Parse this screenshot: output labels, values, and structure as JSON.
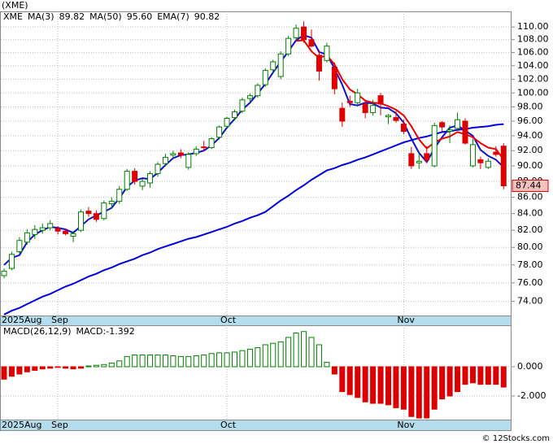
{
  "chart_data": {
    "type": "candlestick",
    "title": "(XME)",
    "ticker": "XME",
    "ticker_color": "#008000",
    "up_color": "#008000",
    "down_color": "#dd0000",
    "log_scale": true,
    "grid": true,
    "ylim": [
      72.5,
      112.5
    ],
    "yticks": [
      {
        "value": 74,
        "label": "74.00"
      },
      {
        "value": 76,
        "label": "76.00"
      },
      {
        "value": 78,
        "label": "78.00"
      },
      {
        "value": 80,
        "label": "80.00"
      },
      {
        "value": 82,
        "label": "82.00"
      },
      {
        "value": 84,
        "label": "84.00"
      },
      {
        "value": 86,
        "label": "86.00"
      },
      {
        "value": 88,
        "label": "88.00"
      },
      {
        "value": 90,
        "label": "90.00"
      },
      {
        "value": 92,
        "label": "92.00"
      },
      {
        "value": 94,
        "label": "94.00"
      },
      {
        "value": 96,
        "label": "96.00"
      },
      {
        "value": 98,
        "label": "98.00"
      },
      {
        "value": 100,
        "label": "100.00"
      },
      {
        "value": 102,
        "label": "102.00"
      },
      {
        "value": 104,
        "label": "104.00"
      },
      {
        "value": 106,
        "label": "106.00"
      },
      {
        "value": 108,
        "label": "108.00"
      },
      {
        "value": 110,
        "label": "110.00"
      }
    ],
    "xticks": [
      {
        "value": 0,
        "label": "2025Aug"
      },
      {
        "value": 7,
        "label": "Sep"
      },
      {
        "value": 29,
        "label": "Oct"
      },
      {
        "value": 52,
        "label": "Nov"
      }
    ],
    "open": [
      76.8,
      77.6,
      79.5,
      80.6,
      81.5,
      82.0,
      82.3,
      82.2,
      81.9,
      81.3,
      82.0,
      84.3,
      84.0,
      83.4,
      85.2,
      85.5,
      87.0,
      89.3,
      87.4,
      87.8,
      89.0,
      90.3,
      91.4,
      91.7,
      89.8,
      91.6,
      92.5,
      92.4,
      93.8,
      95.3,
      96.5,
      97.4,
      99.2,
      99.6,
      101.2,
      103.4,
      102.4,
      105.8,
      108.3,
      110.0,
      108.0,
      105.6,
      104.8,
      103.8,
      97.8,
      98.8,
      98.6,
      98.4,
      97.2,
      99.6,
      96.6,
      96.5,
      95.6,
      91.6,
      90.4,
      91.6,
      90.0,
      95.8,
      94.6,
      95.0,
      96.0,
      90.0,
      90.8,
      89.8,
      91.8,
      92.6
    ],
    "high": [
      77.6,
      79.5,
      81.2,
      82.1,
      82.6,
      82.8,
      83.2,
      82.5,
      82.2,
      81.9,
      84.5,
      84.8,
      84.4,
      85.6,
      86.0,
      87.4,
      89.6,
      89.7,
      88.3,
      89.3,
      90.5,
      91.6,
      92.0,
      92.2,
      91.8,
      92.6,
      93.3,
      93.8,
      95.4,
      96.6,
      97.6,
      99.3,
      99.9,
      101.4,
      103.6,
      104.9,
      106.2,
      108.6,
      110.4,
      110.9,
      109.6,
      106.4,
      107.5,
      104.5,
      98.6,
      99.6,
      100.6,
      98.8,
      99.0,
      100.0,
      97.0,
      97.4,
      96.2,
      92.5,
      91.8,
      92.6,
      95.8,
      96.0,
      95.4,
      97.2,
      96.4,
      93.6,
      91.2,
      91.0,
      92.6,
      93.0
    ],
    "low": [
      76.5,
      77.4,
      79.3,
      80.3,
      81.0,
      81.6,
      82.0,
      81.5,
      81.4,
      80.6,
      81.8,
      83.6,
      83.0,
      83.2,
      84.6,
      85.2,
      86.8,
      87.6,
      86.9,
      87.2,
      88.6,
      89.9,
      90.9,
      91.0,
      89.5,
      91.3,
      92.0,
      92.2,
      93.5,
      95.0,
      96.1,
      97.1,
      98.6,
      99.3,
      100.9,
      103.0,
      102.0,
      105.5,
      107.9,
      107.5,
      106.8,
      101.8,
      104.5,
      99.8,
      95.2,
      98.0,
      98.2,
      96.4,
      96.8,
      96.8,
      95.6,
      95.8,
      94.2,
      89.6,
      89.6,
      90.4,
      89.8,
      94.6,
      93.0,
      94.8,
      92.8,
      89.8,
      89.6,
      89.6,
      91.2,
      87.0
    ],
    "close": [
      77.3,
      79.2,
      80.8,
      81.7,
      82.1,
      82.3,
      82.8,
      81.9,
      81.6,
      81.6,
      84.2,
      84.0,
      83.3,
      85.3,
      85.5,
      87.0,
      89.3,
      88.0,
      88.0,
      89.0,
      90.2,
      91.1,
      91.6,
      91.4,
      91.5,
      92.2,
      92.4,
      93.6,
      95.2,
      96.4,
      97.3,
      99.0,
      99.6,
      101.1,
      103.3,
      104.6,
      105.8,
      108.2,
      109.8,
      108.0,
      107.0,
      103.2,
      107.0,
      100.6,
      96.0,
      98.6,
      100.0,
      97.2,
      98.2,
      98.4,
      96.8,
      96.1,
      94.6,
      90.0,
      90.6,
      90.8,
      95.4,
      95.2,
      94.8,
      96.2,
      93.0,
      92.8,
      90.4,
      90.6,
      91.5,
      87.44
    ],
    "last_close_label": "87.44",
    "series": [
      {
        "name": "MA(3)",
        "color": "#1010cc",
        "last_label": "89.82",
        "values": [
          78.0,
          78.8,
          79.1,
          80.6,
          81.5,
          82.0,
          82.4,
          82.3,
          82.1,
          81.7,
          82.5,
          83.3,
          83.8,
          84.2,
          84.7,
          85.9,
          87.3,
          88.1,
          88.4,
          88.3,
          89.1,
          90.1,
          91.0,
          91.4,
          91.5,
          91.7,
          92.0,
          92.7,
          93.7,
          95.1,
          96.3,
          97.6,
          98.6,
          99.9,
          101.3,
          103.0,
          104.6,
          106.2,
          107.9,
          108.7,
          108.3,
          106.1,
          105.7,
          103.6,
          101.2,
          98.4,
          98.2,
          98.6,
          98.5,
          97.9,
          97.8,
          97.1,
          95.8,
          93.6,
          91.7,
          90.5,
          92.3,
          93.8,
          95.1,
          95.4,
          94.7,
          94.0,
          92.1,
          91.3,
          90.8,
          89.82
        ]
      },
      {
        "name": "MA(50)",
        "color": "#0000dd",
        "last_label": "95.60",
        "values": [
          72.6,
          73.0,
          73.3,
          73.7,
          74.1,
          74.5,
          74.8,
          75.2,
          75.6,
          75.9,
          76.3,
          76.7,
          77.0,
          77.4,
          77.7,
          78.1,
          78.4,
          78.7,
          79.1,
          79.4,
          79.8,
          80.1,
          80.4,
          80.7,
          81.0,
          81.2,
          81.5,
          81.8,
          82.1,
          82.4,
          82.8,
          83.1,
          83.5,
          83.8,
          84.2,
          84.9,
          85.6,
          86.2,
          86.9,
          87.5,
          88.2,
          88.8,
          89.4,
          89.7,
          90.1,
          90.4,
          90.8,
          91.1,
          91.5,
          91.9,
          92.3,
          92.7,
          93.1,
          93.4,
          93.7,
          93.9,
          94.2,
          94.5,
          94.6,
          94.8,
          94.9,
          95.1,
          95.2,
          95.3,
          95.5,
          95.6
        ]
      },
      {
        "name": "EMA(7)",
        "color": "#ee0000",
        "last_label": "90.82",
        "values": [
          null,
          null,
          null,
          null,
          null,
          null,
          null,
          null,
          null,
          null,
          null,
          null,
          null,
          null,
          null,
          null,
          null,
          null,
          null,
          null,
          null,
          null,
          null,
          null,
          null,
          null,
          null,
          null,
          null,
          null,
          null,
          null,
          null,
          null,
          null,
          null,
          null,
          null,
          107.8,
          107.9,
          106.2,
          105.2,
          105.6,
          104.2,
          102.0,
          100.5,
          99.8,
          98.9,
          98.6,
          98.5,
          98.1,
          97.6,
          96.8,
          95.3,
          93.5,
          92.3,
          93.1,
          93.6,
          93.9,
          94.5,
          94.2,
          93.8,
          93.0,
          92.4,
          92.2,
          90.82
        ]
      }
    ],
    "macd": {
      "title": "MACD(26,12,9)",
      "label": "MACD:-1.392",
      "label_color": "#0000dd",
      "ylim": [
        -3.61,
        2.83
      ],
      "yticks": [
        {
          "value": 0,
          "label": "0.000"
        },
        {
          "value": -2,
          "label": "-2.000"
        }
      ],
      "values": [
        -0.85,
        -0.65,
        -0.5,
        -0.35,
        -0.25,
        -0.15,
        -0.1,
        -0.05,
        -0.1,
        -0.15,
        -0.1,
        0.05,
        0.1,
        0.15,
        0.25,
        0.4,
        0.7,
        0.8,
        0.8,
        0.8,
        0.8,
        0.8,
        0.75,
        0.7,
        0.7,
        0.75,
        0.8,
        0.9,
        0.95,
        0.95,
        1.0,
        1.1,
        1.2,
        1.3,
        1.5,
        1.6,
        1.7,
        2.0,
        2.3,
        2.4,
        2.0,
        1.5,
        0.3,
        -0.5,
        -1.7,
        -1.9,
        -2.1,
        -2.4,
        -2.5,
        -2.5,
        -2.6,
        -2.8,
        -2.9,
        -3.4,
        -3.5,
        -3.5,
        -2.9,
        -2.2,
        -2.0,
        -1.7,
        -1.2,
        -1.1,
        -1.2,
        -1.2,
        -1.2,
        -1.39
      ]
    },
    "watermark": "© 12Stocks.com"
  }
}
